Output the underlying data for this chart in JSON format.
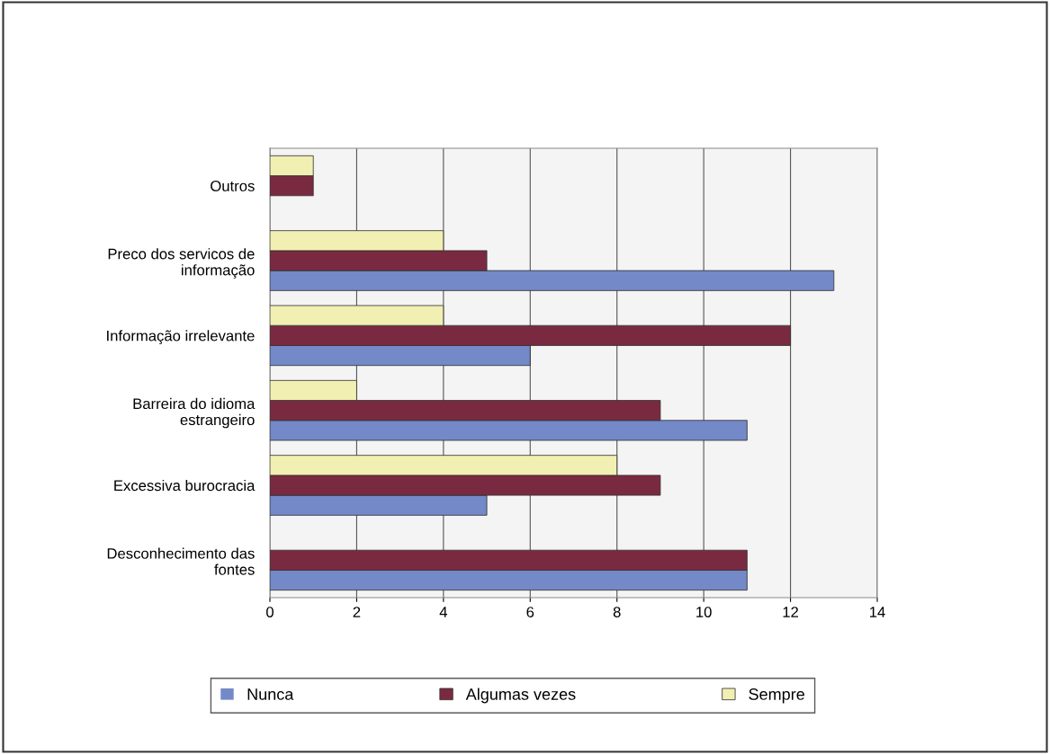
{
  "chart_data": {
    "type": "bar",
    "orientation": "horizontal",
    "categories": [
      "Outros",
      "Preco dos servicos de\ninformação",
      "Informação irrelevante",
      "Barreira do idioma\nestrangeiro",
      "Excessiva burocracia",
      "Desconhecimento das\nfontes"
    ],
    "series": [
      {
        "name": "Nunca",
        "color": "#7389c8",
        "values": [
          0,
          13,
          6,
          11,
          5,
          11
        ]
      },
      {
        "name": "Algumas vezes",
        "color": "#7a2a40",
        "values": [
          1,
          5,
          12,
          9,
          9,
          11
        ]
      },
      {
        "name": "Sempre",
        "color": "#f2efb2",
        "values": [
          1,
          4,
          4,
          2,
          8,
          0
        ]
      }
    ],
    "xlim": [
      0,
      14
    ],
    "xticks": [
      0,
      2,
      4,
      6,
      8,
      10,
      12,
      14
    ],
    "grid": "x",
    "legend": "bottom"
  }
}
